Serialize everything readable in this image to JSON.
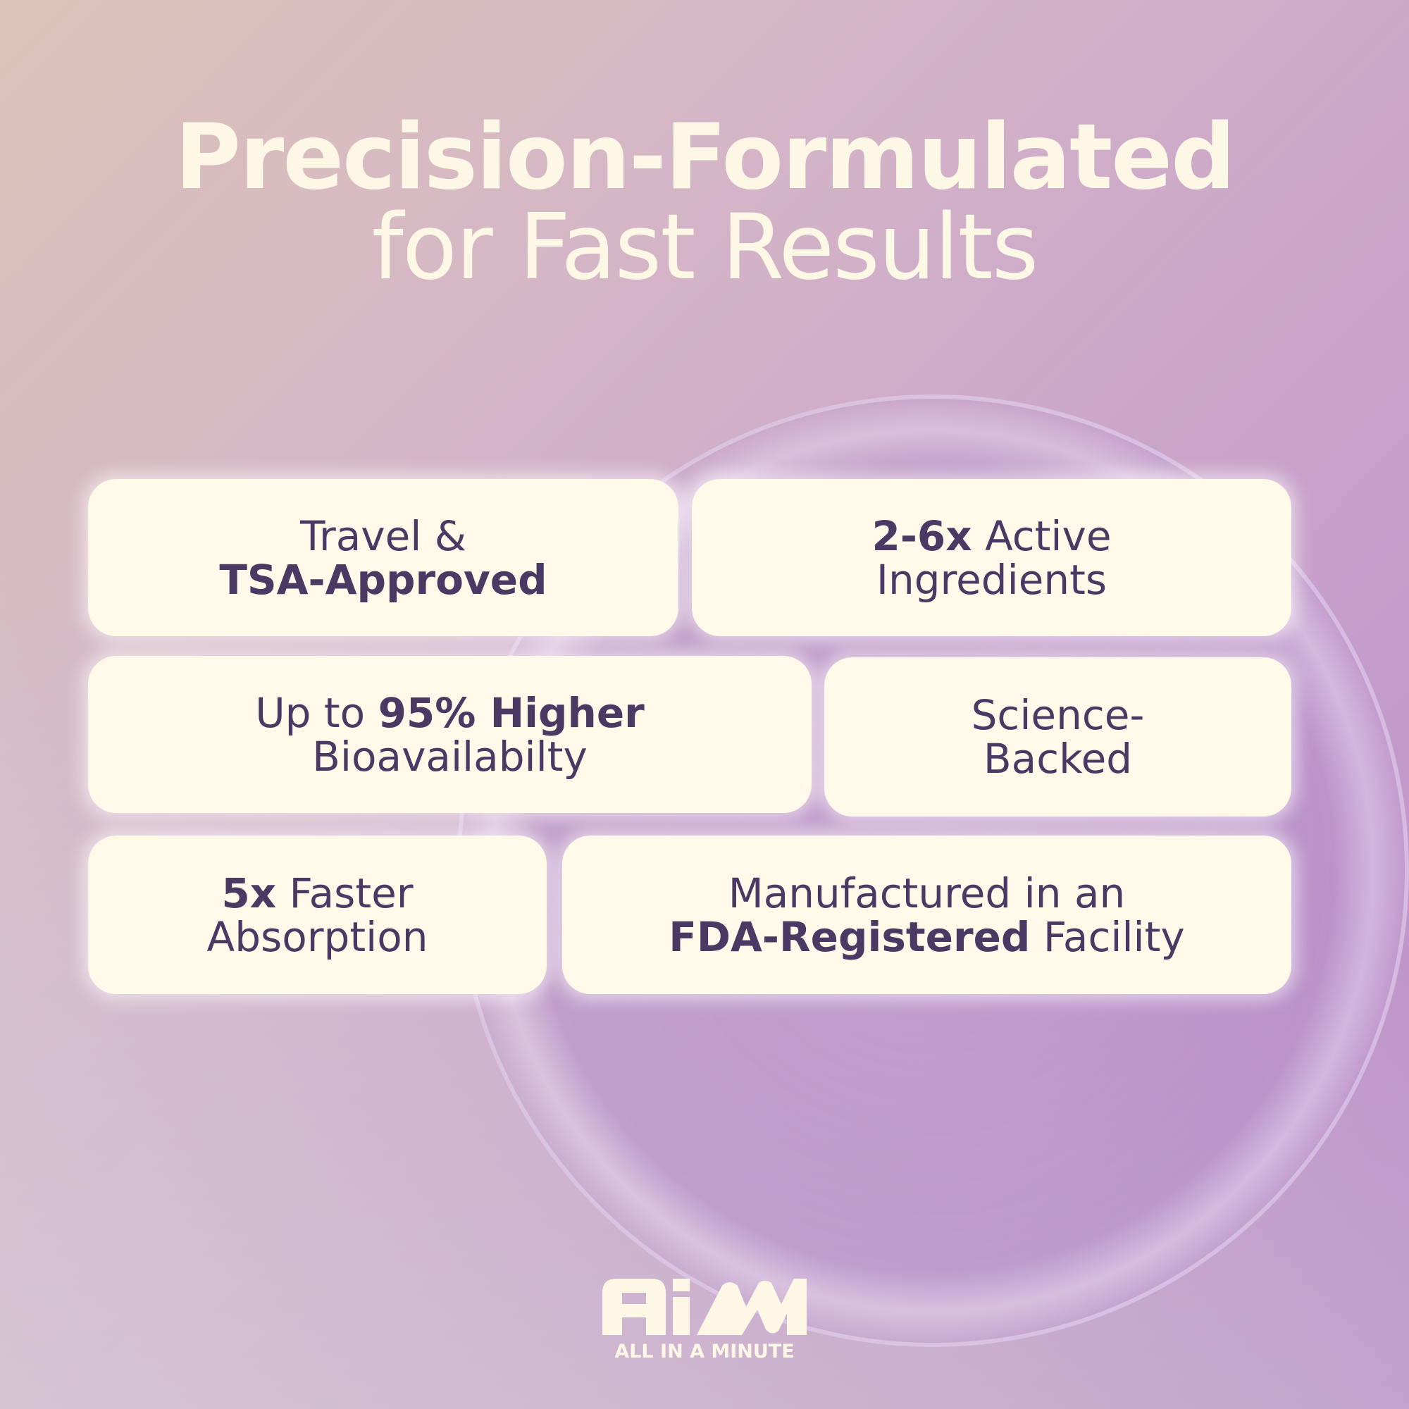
{
  "title": {
    "line1": "Precision-Formulated",
    "line2": "for Fast Results"
  },
  "cards": [
    {
      "pre": "Travel &",
      "bold": "TSA-Approved",
      "post": ""
    },
    {
      "bold": "2-6x",
      "post": " Active",
      "line2": "Ingredients"
    },
    {
      "pre": "Up to ",
      "bold": "95% Higher",
      "line2": "Bioavailabilty"
    },
    {
      "line1": "Science-",
      "line2": "Backed"
    },
    {
      "bold": "5x",
      "post": " Faster",
      "line2": "Absorption"
    },
    {
      "line1": "Manufactured in an",
      "bold": "FDA-Registered",
      "post": " Facility"
    }
  ],
  "logo": {
    "mark": "AiM",
    "tagline": "ALL IN A MINUTE"
  },
  "colors": {
    "cream": "#fef9e9",
    "text": "#4a3a63",
    "title": "#fdf7e6"
  }
}
